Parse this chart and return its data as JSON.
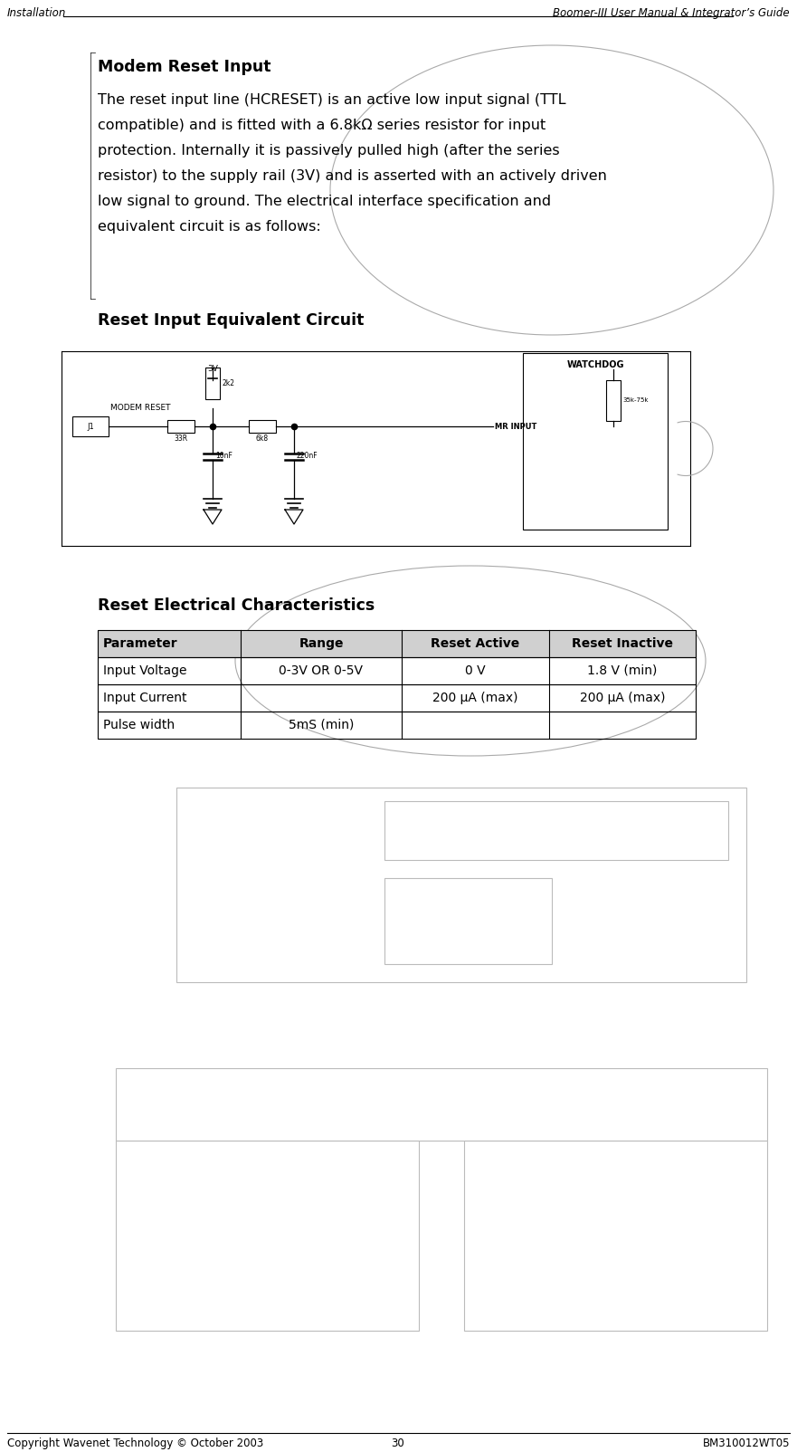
{
  "header_left": "Installation",
  "header_right": "Boomer-III User Manual & Integrator’s Guide",
  "footer_left": "Copyright Wavenet Technology © October 2003",
  "footer_center": "30",
  "footer_right": "BM310012WT05",
  "section_title": "Modem Reset Input",
  "body_line1": "The reset input line (HCRESET) is an active low input signal (TTL",
  "body_line2": "compatible) and is fitted with a 6.8kΩ series resistor for input",
  "body_line3": "protection. Internally it is passively pulled high (after the series",
  "body_line4": "resistor) to the supply rail (3V) and is asserted with an actively driven",
  "body_line5": "low signal to ground. The electrical interface specification and",
  "body_line6": "equivalent circuit is as follows:",
  "circuit_title": "Reset Input Equivalent Circuit",
  "table_title": "Reset Electrical Characteristics",
  "table_headers": [
    "Parameter",
    "Range",
    "Reset Active",
    "Reset Inactive"
  ],
  "table_rows": [
    [
      "Input Voltage",
      "0-3V OR 0-5V",
      "0 V",
      "1.8 V (min)"
    ],
    [
      "Input Current",
      "",
      "200 µA (max)",
      "200 µA (max)"
    ],
    [
      "Pulse width",
      "5mS (min)",
      "",
      ""
    ]
  ],
  "bg_color": "#ffffff",
  "text_color": "#000000"
}
